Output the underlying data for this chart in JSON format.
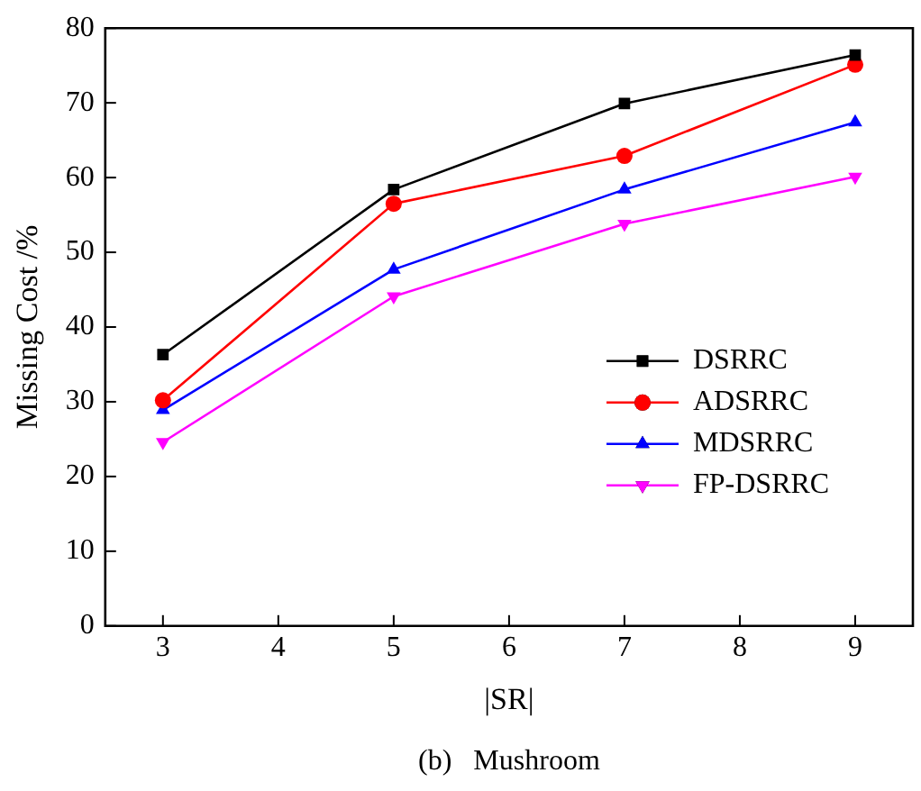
{
  "chart_data": {
    "type": "line",
    "xlabel": "|SR|",
    "ylabel": "Missing Cost /%",
    "annotations": [
      "(b)   Mushroom"
    ],
    "x": [
      3,
      5,
      7,
      9
    ],
    "xlim": [
      2.5,
      9.5
    ],
    "xticks": [
      3,
      4,
      5,
      6,
      7,
      8,
      9
    ],
    "ylim": [
      0,
      80
    ],
    "yticks": [
      0,
      10,
      20,
      30,
      40,
      50,
      60,
      70,
      80
    ],
    "grid": false,
    "legend": "bottom right",
    "line_style": "solid",
    "series": [
      {
        "name": "DSRRC",
        "color": "#000000",
        "marker": "square",
        "values": [
          36.3,
          58.4,
          69.9,
          76.4
        ]
      },
      {
        "name": "ADSRRC",
        "color": "#ff0000",
        "marker": "circle",
        "values": [
          30.2,
          56.5,
          62.9,
          75.1
        ]
      },
      {
        "name": "MDSRRC",
        "color": "#0000ff",
        "marker": "triangle",
        "values": [
          28.9,
          47.7,
          58.4,
          67.4
        ]
      },
      {
        "name": "FP-DSRRC",
        "color": "#ff00ff",
        "marker": "triangle-down",
        "values": [
          24.6,
          44.1,
          53.8,
          60.1
        ]
      }
    ]
  }
}
